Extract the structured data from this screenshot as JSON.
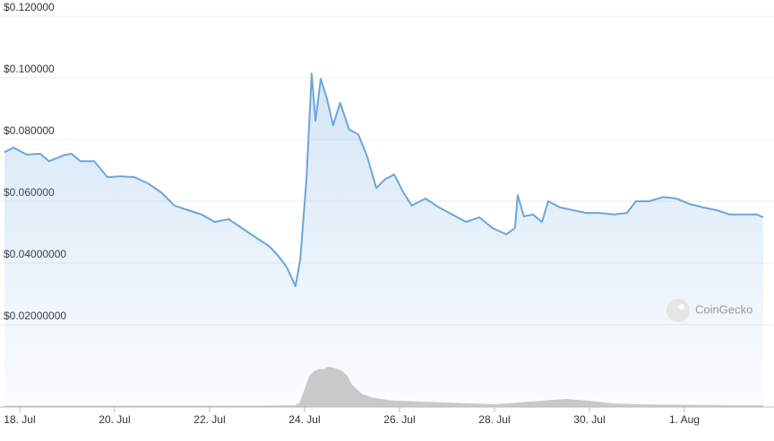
{
  "chart_data": [
    {
      "type": "line",
      "color": "#6aa6df",
      "grid": true,
      "x": [
        -0.32,
        -0.13,
        0.15,
        0.43,
        0.62,
        0.91,
        1.09,
        1.28,
        1.57,
        1.85,
        2.13,
        2.42,
        2.7,
        2.98,
        3.26,
        3.55,
        3.83,
        4.11,
        4.4,
        4.68,
        4.96,
        5.25,
        5.43,
        5.62,
        5.81,
        5.91,
        6.04,
        6.15,
        6.23,
        6.34,
        6.47,
        6.6,
        6.75,
        6.94,
        7.13,
        7.32,
        7.51,
        7.7,
        7.89,
        8.08,
        8.26,
        8.55,
        8.83,
        9.11,
        9.4,
        9.68,
        9.96,
        10.25,
        10.43,
        10.49,
        10.62,
        10.81,
        11.0,
        11.13,
        11.38,
        11.66,
        11.94,
        12.23,
        12.51,
        12.79,
        12.98,
        13.26,
        13.55,
        13.83,
        14.11,
        14.4,
        14.68,
        14.96,
        15.25,
        15.53,
        15.66
      ],
      "values": [
        0.0759,
        0.0774,
        0.0751,
        0.0754,
        0.073,
        0.0748,
        0.0754,
        0.073,
        0.073,
        0.0678,
        0.0681,
        0.0678,
        0.0658,
        0.0629,
        0.0586,
        0.0571,
        0.0557,
        0.0533,
        0.0542,
        0.0513,
        0.0484,
        0.0455,
        0.0426,
        0.0388,
        0.0325,
        0.0412,
        0.0672,
        0.1014,
        0.0861,
        0.0997,
        0.0933,
        0.0846,
        0.0919,
        0.0832,
        0.0817,
        0.0745,
        0.0643,
        0.0672,
        0.0687,
        0.0629,
        0.0586,
        0.0609,
        0.058,
        0.0557,
        0.0533,
        0.0548,
        0.0513,
        0.0493,
        0.0513,
        0.062,
        0.0551,
        0.0557,
        0.0533,
        0.06,
        0.058,
        0.0571,
        0.0562,
        0.0562,
        0.0557,
        0.0562,
        0.06,
        0.06,
        0.0614,
        0.0609,
        0.0591,
        0.058,
        0.0571,
        0.0557,
        0.0557,
        0.0557,
        0.0548
      ],
      "xlim": [
        -0.32,
        15.68
      ],
      "ylim": [
        0.02,
        0.12
      ],
      "yticks": [
        {
          "value": 0.12,
          "label": "$0.120000"
        },
        {
          "value": 0.1,
          "label": "$0.100000"
        },
        {
          "value": 0.08,
          "label": "$0.080000"
        },
        {
          "value": 0.06,
          "label": "$0.060000"
        },
        {
          "value": 0.04,
          "label": "$0.04000000"
        },
        {
          "value": 0.02,
          "label": "$0.02000000"
        }
      ],
      "watermark": "CoinGecko"
    },
    {
      "type": "volume",
      "color": "#c9c9c9",
      "x": [
        -0.32,
        1,
        2,
        3,
        4,
        5,
        5.8,
        5.9,
        6.0,
        6.1,
        6.2,
        6.3,
        6.4,
        6.5,
        6.6,
        6.7,
        6.8,
        6.9,
        7.0,
        7.1,
        7.2,
        7.4,
        7.6,
        7.8,
        8.0,
        8.5,
        9.0,
        9.5,
        10.0,
        10.5,
        11.0,
        11.5,
        12.0,
        12.5,
        13.0,
        14.0,
        15.0,
        15.66
      ],
      "values": [
        3,
        3,
        3,
        3,
        3,
        3,
        4,
        10,
        40,
        70,
        80,
        85,
        85,
        90,
        88,
        85,
        80,
        70,
        50,
        40,
        30,
        22,
        18,
        15,
        14,
        12,
        10,
        8,
        6,
        10,
        14,
        18,
        14,
        8,
        6,
        5,
        4,
        4
      ],
      "xlim": [
        -0.32,
        15.68
      ],
      "ylim": [
        0,
        100
      ],
      "xticks": [
        {
          "value": 0,
          "label": "18. Jul"
        },
        {
          "value": 2,
          "label": "20. Jul"
        },
        {
          "value": 4,
          "label": "22. Jul"
        },
        {
          "value": 6,
          "label": "24. Jul"
        },
        {
          "value": 8,
          "label": "26. Jul"
        },
        {
          "value": 10,
          "label": "28. Jul"
        },
        {
          "value": 12,
          "label": "30. Jul"
        },
        {
          "value": 14,
          "label": "1. Aug"
        }
      ]
    }
  ]
}
